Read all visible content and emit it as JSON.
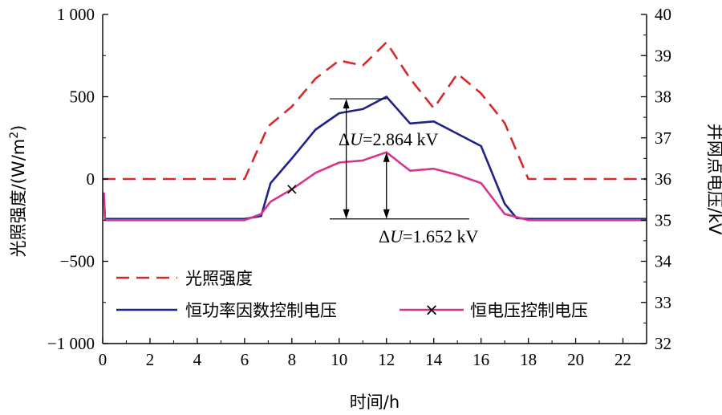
{
  "chart_data": {
    "type": "line",
    "xlabel": "时间/h",
    "ylabel_left": "光照强度/(W/m²)",
    "ylabel_left_parts": {
      "base": "光照强度/(W/m",
      "sup": "2",
      "tail": ")"
    },
    "ylabel_right": "并网点电压/kV",
    "xlim": [
      0,
      23
    ],
    "ylim_left": [
      -1000,
      1000
    ],
    "ylim_right": [
      32,
      40
    ],
    "xticks": [
      0,
      2,
      4,
      6,
      8,
      10,
      12,
      14,
      16,
      18,
      20,
      22
    ],
    "xtick_labels": [
      "0",
      "2",
      "4",
      "6",
      "8",
      "10",
      "12",
      "14",
      "16",
      "18",
      "20",
      "22"
    ],
    "yticks_left": [
      -1000,
      -500,
      0,
      500,
      1000
    ],
    "ytick_labels_left": [
      "−1 000",
      "−500",
      "0",
      "500",
      "1 000"
    ],
    "yticks_right": [
      32,
      33,
      34,
      35,
      36,
      37,
      38,
      39,
      40
    ],
    "ytick_labels_right": [
      "32",
      "33",
      "34",
      "35",
      "36",
      "37",
      "38",
      "39",
      "40"
    ],
    "grid": false,
    "legend_position": "lower-left",
    "series": [
      {
        "name": "光照强度",
        "axis": "left",
        "color": "#d62a2a",
        "style": "dashed",
        "x": [
          0,
          6,
          7,
          8,
          9,
          10,
          11,
          12,
          13,
          14,
          15,
          16,
          17,
          18,
          23
        ],
        "y": [
          0,
          0,
          320,
          440,
          610,
          720,
          690,
          830,
          610,
          430,
          640,
          520,
          340,
          0,
          0
        ]
      },
      {
        "name": "恒功率因数控制电压",
        "axis": "right",
        "color": "#1f2385",
        "style": "solid",
        "x": [
          0,
          0.05,
          0.1,
          6,
          6.7,
          7.1,
          8,
          9,
          10,
          11,
          12,
          13,
          14,
          15,
          16,
          16.5,
          17,
          17.5,
          18,
          23
        ],
        "y": [
          35.6,
          35.6,
          35.03,
          35.03,
          35.1,
          35.9,
          36.5,
          37.2,
          37.6,
          37.7,
          38.0,
          37.35,
          37.4,
          37.1,
          36.8,
          36.1,
          35.4,
          35.05,
          35.03,
          35.03
        ]
      },
      {
        "name": "恒电压控制电压",
        "axis": "right",
        "color": "#d6358e",
        "style": "solid",
        "x": [
          0,
          0.05,
          0.1,
          6,
          6.7,
          7.1,
          8,
          9,
          10,
          11,
          12,
          13,
          14,
          15,
          16,
          17,
          18,
          23
        ],
        "y": [
          35.65,
          35.65,
          35.0,
          35.0,
          35.15,
          35.45,
          35.75,
          36.15,
          36.4,
          36.45,
          36.65,
          36.2,
          36.25,
          36.1,
          35.9,
          35.15,
          35.0,
          35.0
        ]
      }
    ],
    "annotations": [
      {
        "text": "ΔU=2.864 kV",
        "prefix": "Δ",
        "var": "U",
        "suffix": "=2.864 kV",
        "x": 12,
        "y_top": 37.95,
        "y_bottom": 35.03,
        "axis": "right"
      },
      {
        "text": "ΔU=1.652 kV",
        "prefix": "Δ",
        "var": "U",
        "suffix": "=1.652 kV",
        "x": 12,
        "y_top": 36.65,
        "y_bottom": 35.03,
        "axis": "right"
      }
    ],
    "legend_marker": "×"
  }
}
